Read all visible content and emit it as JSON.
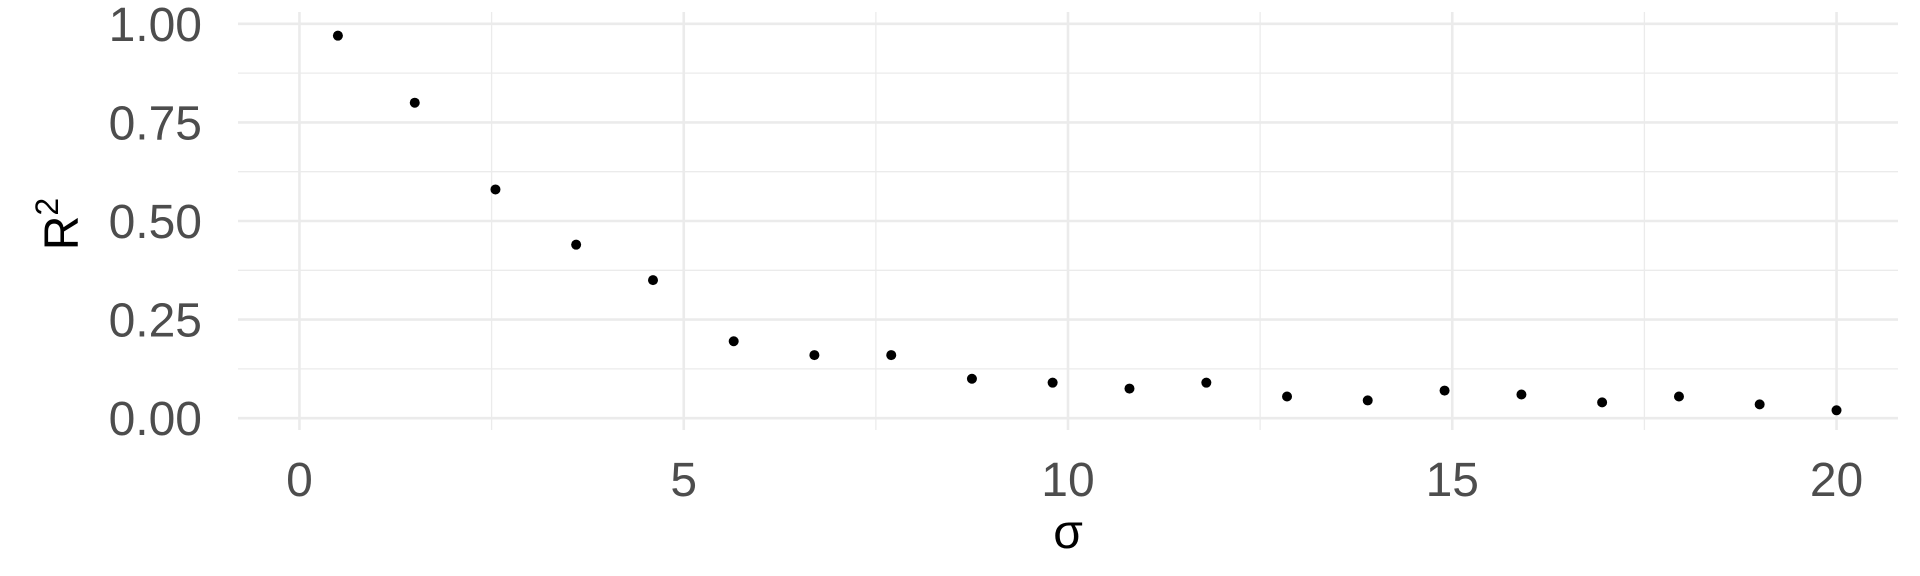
{
  "chart_data": {
    "type": "scatter",
    "title": "",
    "xlabel": "σ",
    "ylabel": "R",
    "ylabel_superscript": "2",
    "xlim": [
      -0.8,
      20.8
    ],
    "ylim": [
      -0.03,
      1.03
    ],
    "grid": true,
    "legend": "none",
    "x_ticks": [
      0,
      5,
      10,
      15,
      20
    ],
    "x_tick_labels": [
      "0",
      "5",
      "10",
      "15",
      "20"
    ],
    "x_minor_ticks": [
      2.5,
      7.5,
      12.5,
      17.5
    ],
    "y_ticks": [
      0,
      0.25,
      0.5,
      0.75,
      1.0
    ],
    "y_tick_labels": [
      "0.00",
      "0.25",
      "0.50",
      "0.75",
      "1.00"
    ],
    "y_minor_ticks": [
      0.125,
      0.375,
      0.625,
      0.875
    ],
    "series": [
      {
        "x": [
          0.5,
          1.5,
          2.55,
          3.6,
          4.6,
          5.65,
          6.7,
          7.7,
          8.75,
          9.8,
          10.8,
          11.8,
          12.85,
          13.9,
          14.9,
          15.9,
          16.95,
          17.95,
          19.0,
          20.0
        ],
        "y": [
          0.97,
          0.8,
          0.58,
          0.44,
          0.35,
          0.195,
          0.16,
          0.16,
          0.1,
          0.09,
          0.075,
          0.09,
          0.055,
          0.045,
          0.07,
          0.06,
          0.04,
          0.055,
          0.035,
          0.02
        ],
        "color": "#000000"
      }
    ]
  }
}
